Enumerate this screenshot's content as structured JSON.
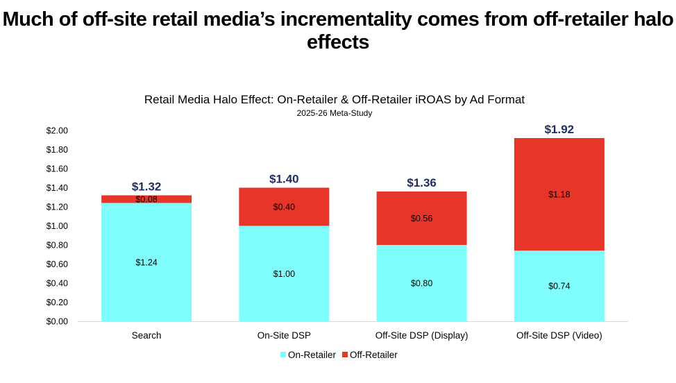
{
  "headline": "Much of off-site retail media’s incrementality comes from off-retailer halo effects",
  "chart_data": {
    "type": "bar",
    "stacked": true,
    "title": "Retail Media Halo Effect: On-Retailer & Off-Retailer iROAS by Ad Format",
    "subtitle": "2025-26 Meta-Study",
    "categories": [
      "Search",
      "On-Site DSP",
      "Off-Site DSP (Display)",
      "Off-Site DSP (Video)"
    ],
    "series": [
      {
        "name": "On-Retailer",
        "values": [
          1.24,
          1.0,
          0.8,
          0.74
        ],
        "labels": [
          "$1.24",
          "$1.00",
          "$0.80",
          "$0.74"
        ],
        "color": "#7ffcfc"
      },
      {
        "name": "Off-Retailer",
        "values": [
          0.08,
          0.4,
          0.56,
          1.18
        ],
        "labels": [
          "$0.08",
          "$0.40",
          "$0.56",
          "$1.18"
        ],
        "color": "#e8352a"
      }
    ],
    "totals": [
      "$1.32",
      "$1.40",
      "$1.36",
      "$1.92"
    ],
    "ylim": [
      0,
      2.0
    ],
    "yticks": [
      0,
      0.2,
      0.4,
      0.6,
      0.8,
      1.0,
      1.2,
      1.4,
      1.6,
      1.8,
      2.0
    ],
    "ytick_labels": [
      "$0.00",
      "$0.20",
      "$0.40",
      "$0.60",
      "$0.80",
      "$1.00",
      "$1.20",
      "$1.40",
      "$1.60",
      "$1.80",
      "$2.00"
    ],
    "grid": false,
    "legend_position": "bottom",
    "total_label_color": "#1f2d5c"
  }
}
